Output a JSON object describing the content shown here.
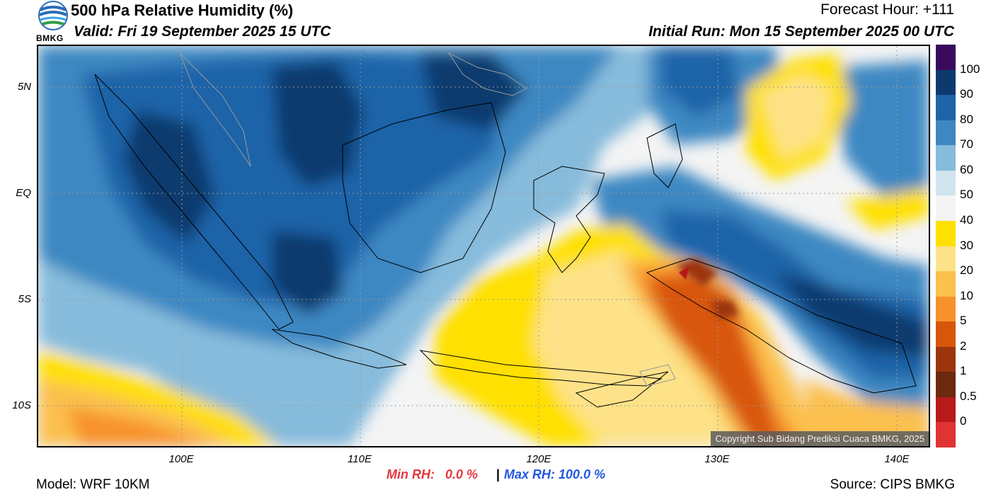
{
  "header": {
    "title": "500 hPa Relative Humidity (%)",
    "valid": "Valid: Fri 19 September 2025 15 UTC",
    "forecast_hour": "Forecast Hour: +111",
    "initial_run": "Initial Run: Mon 15 September 2025 00 UTC"
  },
  "logo": {
    "icon": "bmkg-logo-icon",
    "text": "BMKG"
  },
  "map": {
    "lat_labels": [
      "5N",
      "EQ",
      "5S",
      "10S"
    ],
    "lon_labels": [
      "100E",
      "110E",
      "120E",
      "130E",
      "140E"
    ],
    "copyright": "Copyright Sub Bidang Prediksi Cuaca BMKG, 2025"
  },
  "colorbar": {
    "levels": [
      "100",
      "90",
      "80",
      "70",
      "60",
      "50",
      "40",
      "30",
      "20",
      "10",
      "5",
      "2",
      "1",
      "0.5",
      "0"
    ],
    "colors": [
      "#3a0a5e",
      "#0d3a6e",
      "#1f63a8",
      "#3d88c2",
      "#86bbdb",
      "#d0e3ef",
      "#f4f4f4",
      "#ffe000",
      "#fde289",
      "#fbc04d",
      "#f7922a",
      "#d8560a",
      "#9b350c",
      "#6b2a10",
      "#b81a1a",
      "#e03434"
    ]
  },
  "stats": {
    "min_label": "Min RH:",
    "min_value": "0.0 %",
    "separator": "|",
    "max_label": "Max RH:",
    "max_value": "100.0 %"
  },
  "footer": {
    "model": "Model: WRF 10KM",
    "source": "Source: CIPS BMKG"
  }
}
